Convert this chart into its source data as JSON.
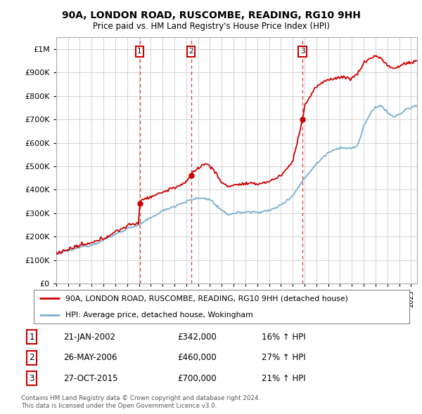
{
  "title": "90A, LONDON ROAD, RUSCOMBE, READING, RG10 9HH",
  "subtitle": "Price paid vs. HM Land Registry's House Price Index (HPI)",
  "hpi_label": "HPI: Average price, detached house, Wokingham",
  "price_label": "90A, LONDON ROAD, RUSCOMBE, READING, RG10 9HH (detached house)",
  "price_color": "#cc0000",
  "hpi_color": "#7ab0d4",
  "sale_annotations": [
    {
      "num": "1",
      "date": "21-JAN-2002",
      "price": "£342,000",
      "pct": "16% ↑ HPI"
    },
    {
      "num": "2",
      "date": "26-MAY-2006",
      "price": "£460,000",
      "pct": "27% ↑ HPI"
    },
    {
      "num": "3",
      "date": "27-OCT-2015",
      "price": "£700,000",
      "pct": "21% ↑ HPI"
    }
  ],
  "footer1": "Contains HM Land Registry data © Crown copyright and database right 2024.",
  "footer2": "This data is licensed under the Open Government Licence v3.0.",
  "xmin": 1995,
  "xmax": 2025.5,
  "ymin": 0,
  "ymax": 1050000,
  "background": "#ffffff",
  "grid_color": "#cccccc",
  "sale_dates": [
    2002.06,
    2006.4,
    2015.82
  ],
  "sale_prices": [
    342000,
    460000,
    700000
  ],
  "sale_labels": [
    "1",
    "2",
    "3"
  ]
}
